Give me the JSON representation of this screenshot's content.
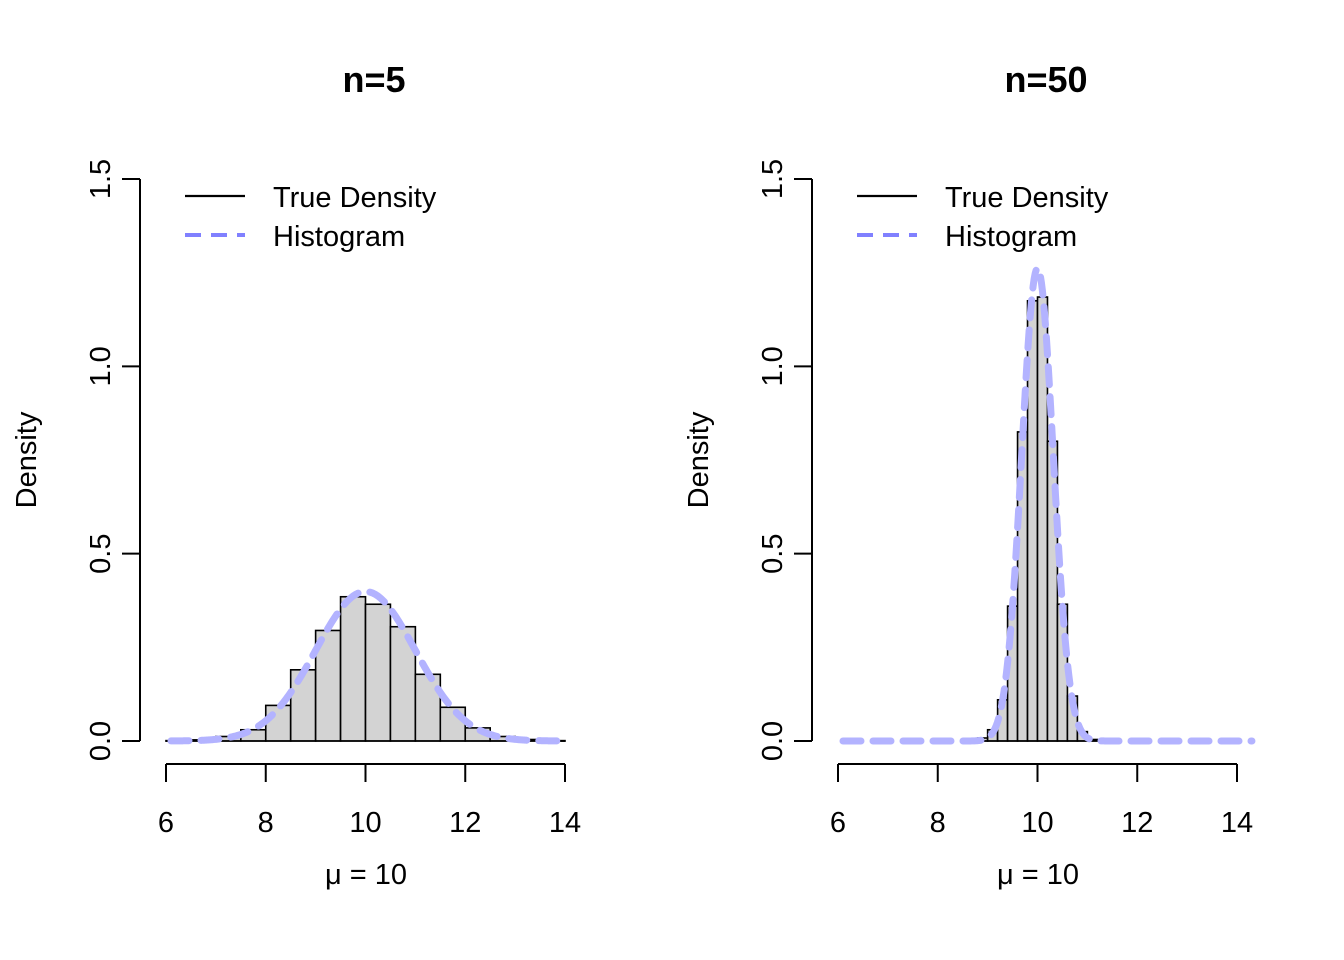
{
  "chart_data": [
    {
      "type": "bar",
      "title": "n=5",
      "xlabel": "μ = 10",
      "ylabel": "Density",
      "xlim": [
        6,
        14
      ],
      "ylim": [
        0,
        1.5
      ],
      "xticks": [
        "6",
        "8",
        "10",
        "12",
        "14"
      ],
      "yticks": [
        "0.0",
        "0.5",
        "1.0",
        "1.5"
      ],
      "legend": {
        "position": "top-left",
        "entries": [
          {
            "label": "True Density",
            "style": "solid",
            "color": "#000000"
          },
          {
            "label": "Histogram",
            "style": "dashed",
            "color": "#8080ff"
          }
        ]
      },
      "histogram": {
        "bin_edges": [
          6.0,
          6.5,
          7.0,
          7.5,
          8.0,
          8.5,
          9.0,
          9.5,
          10.0,
          10.5,
          11.0,
          11.5,
          12.0,
          12.5,
          13.0,
          13.5,
          14.0
        ],
        "density": [
          0.001,
          0.003,
          0.012,
          0.03,
          0.095,
          0.19,
          0.295,
          0.385,
          0.365,
          0.305,
          0.178,
          0.09,
          0.035,
          0.012,
          0.004,
          0.001
        ],
        "fill": "#d3d3d3"
      },
      "curve": {
        "mean": 10,
        "sd": 1.0,
        "color": "#b3b3ff",
        "x_range": [
          6.1,
          13.9
        ]
      }
    },
    {
      "type": "bar",
      "title": "n=50",
      "xlabel": "μ = 10",
      "ylabel": "Density",
      "xlim": [
        6,
        14
      ],
      "ylim": [
        0,
        1.5
      ],
      "xticks": [
        "6",
        "8",
        "10",
        "12",
        "14"
      ],
      "yticks": [
        "0.0",
        "0.5",
        "1.0",
        "1.5"
      ],
      "legend": {
        "position": "top-left",
        "entries": [
          {
            "label": "True Density",
            "style": "solid",
            "color": "#000000"
          },
          {
            "label": "Histogram",
            "style": "dashed",
            "color": "#8080ff"
          }
        ]
      },
      "histogram": {
        "bin_edges": [
          8.6,
          8.8,
          9.0,
          9.2,
          9.4,
          9.6,
          9.8,
          10.0,
          10.2,
          10.4,
          10.6,
          10.8,
          11.0,
          11.2
        ],
        "density": [
          0.002,
          0.008,
          0.03,
          0.11,
          0.36,
          0.825,
          1.175,
          1.185,
          0.8,
          0.365,
          0.12,
          0.025,
          0.004
        ],
        "fill": "#d3d3d3"
      },
      "curve": {
        "mean": 10,
        "sd": 0.3162,
        "color": "#b3b3ff",
        "x_range": [
          6.1,
          14.3
        ]
      }
    }
  ]
}
